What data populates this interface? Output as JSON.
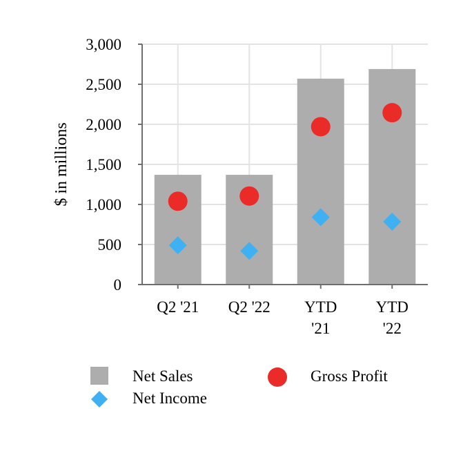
{
  "chart_data": {
    "type": "bar",
    "title": "",
    "xlabel": "",
    "ylabel": "$ in millions",
    "ylim": [
      0,
      3000
    ],
    "yticks": [
      0,
      500,
      1000,
      1500,
      2000,
      2500,
      3000
    ],
    "ytick_labels": [
      "0",
      "500",
      "1,000",
      "1,500",
      "2,000",
      "2,500",
      "3,000"
    ],
    "grid": true,
    "categories": [
      [
        "Q2 '21"
      ],
      [
        "Q2 '22"
      ],
      [
        "YTD",
        "'21"
      ],
      [
        "YTD",
        "'22"
      ]
    ],
    "series": [
      {
        "name": "Net Sales",
        "kind": "bar",
        "marker": "square",
        "color": "#adadad",
        "values": [
          1370,
          1370,
          2570,
          2690
        ]
      },
      {
        "name": "Gross Profit",
        "kind": "scatter",
        "marker": "circle",
        "color": "#ea2b27",
        "values": [
          1040,
          1105,
          1970,
          2145
        ]
      },
      {
        "name": "Net Income",
        "kind": "scatter",
        "marker": "diamond",
        "color": "#3fb0f2",
        "values": [
          490,
          420,
          840,
          785
        ]
      }
    ],
    "legend": {
      "position": "bottom"
    }
  }
}
